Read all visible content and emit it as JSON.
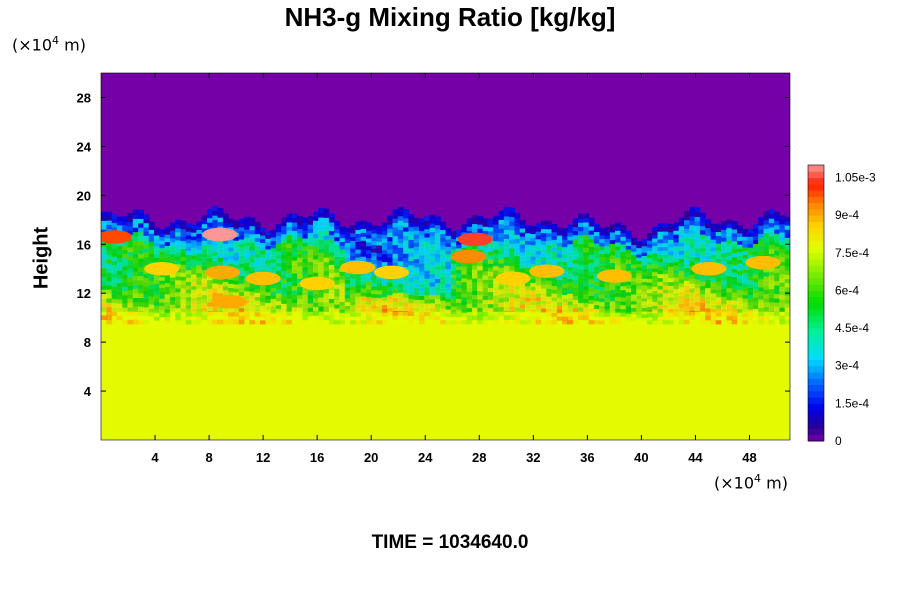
{
  "chart_data": {
    "type": "heatmap",
    "title": "NH3-g Mixing Ratio [kg/kg]",
    "ylabel": "Height",
    "xlabel": "",
    "x_unit": {
      "prefix": "(×10",
      "exp": "4",
      "suffix": " m)"
    },
    "y_unit": {
      "prefix": "(×10",
      "exp": "4",
      "suffix": " m)"
    },
    "xlim": [
      0,
      51
    ],
    "ylim": [
      0,
      30
    ],
    "x_ticks": [
      4,
      8,
      12,
      16,
      20,
      24,
      28,
      32,
      36,
      40,
      44,
      48
    ],
    "y_ticks": [
      4,
      8,
      12,
      16,
      20,
      24,
      28
    ],
    "field": {
      "lower_layer_value": 0.00078,
      "lower_layer_top": 10.5,
      "upper_layer_value": 0,
      "mixing_layer_top": 17.5,
      "peak_value": 0.0011
    },
    "colorbar": {
      "min": 0,
      "max": 0.0011,
      "tick_values": [
        0,
        0.00015,
        0.0003,
        0.00045,
        0.0006,
        0.00075,
        0.0009,
        0.00105
      ],
      "tick_labels": [
        "0",
        "1.5e-4",
        "3e-4",
        "4.5e-4",
        "6e-4",
        "7.5e-4",
        "9e-4",
        "1.05e-3"
      ]
    },
    "grid": false
  },
  "annotation": {
    "time_label": "TIME = 1034640.0"
  }
}
